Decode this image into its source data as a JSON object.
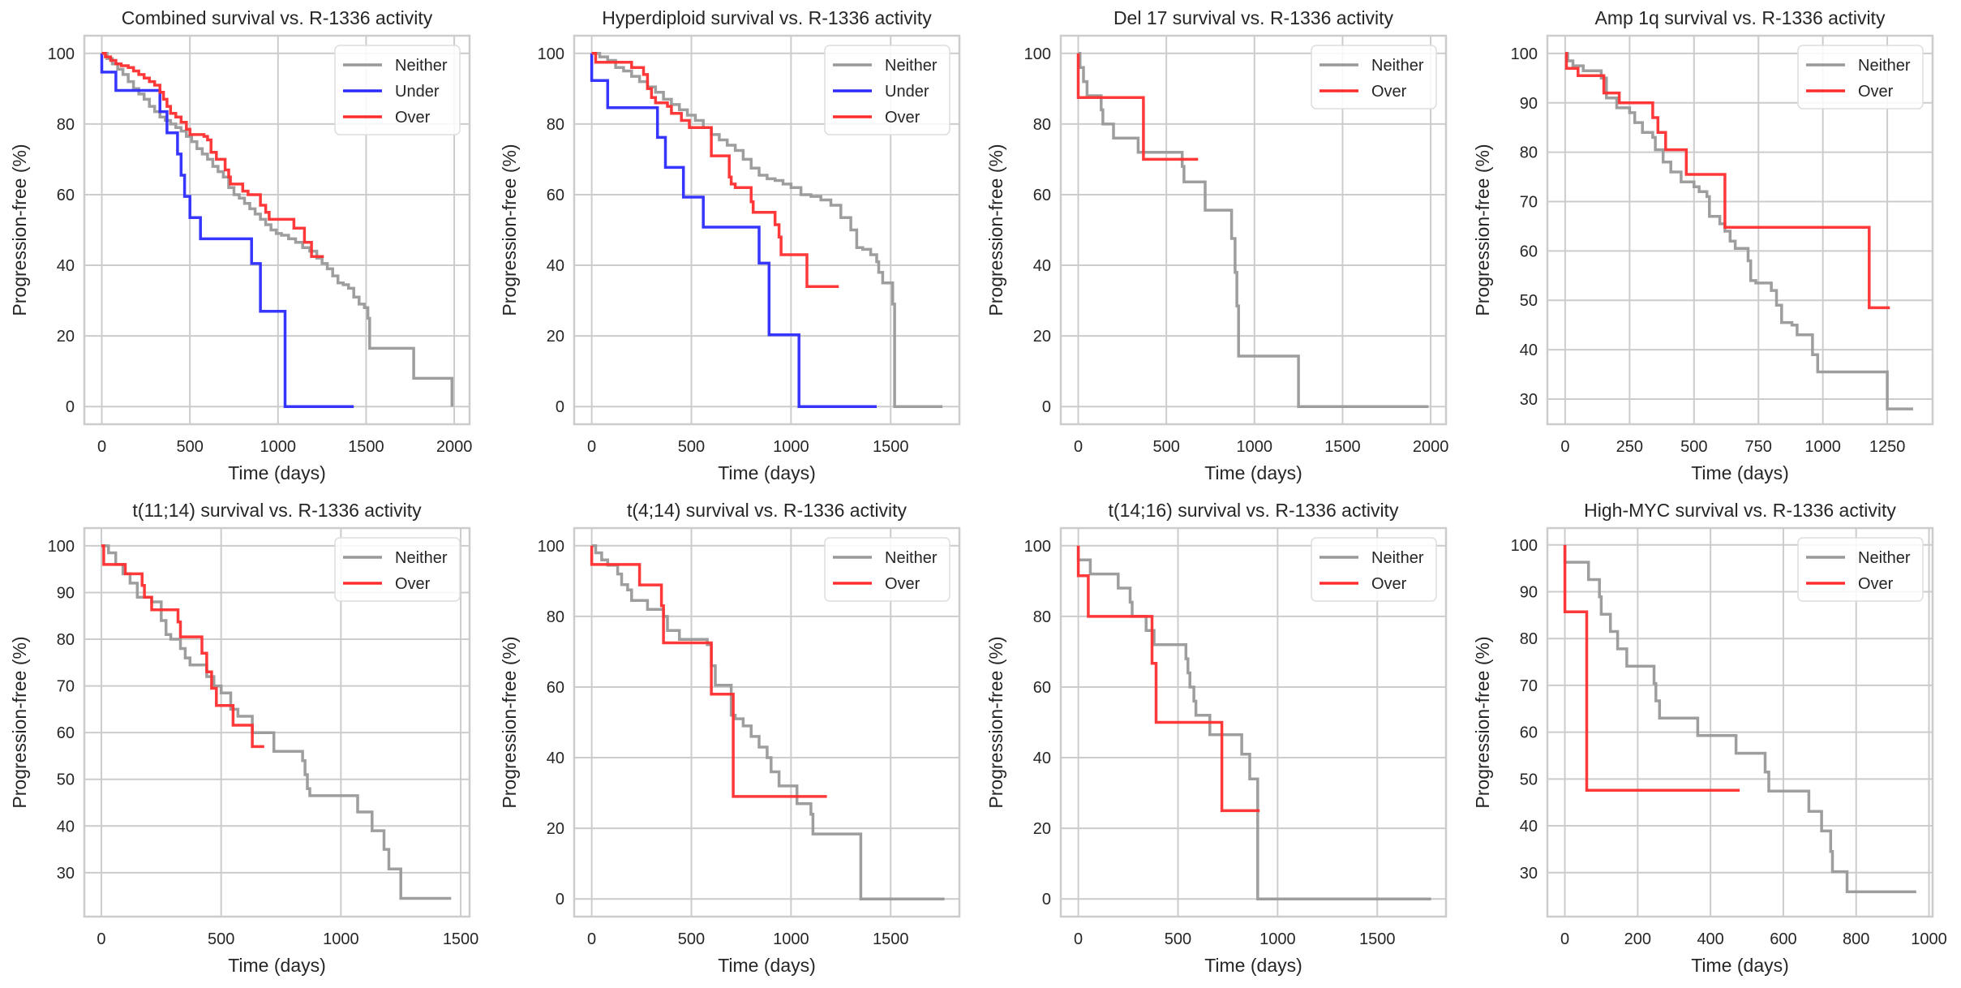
{
  "figure": {
    "colors": {
      "Neither": "#999999",
      "Under": "#2b2bff",
      "Over": "#ff2e2e",
      "grid": "#cccccc",
      "frame": "#cccccc"
    }
  },
  "chart_data": [
    {
      "type": "line",
      "step": true,
      "title": "Combined survival vs. R-1336 activity",
      "xlabel": "Time (days)",
      "ylabel": "Progression-free (%)",
      "xlim": [
        -99,
        2087
      ],
      "ylim": [
        -5,
        105
      ],
      "xticks": [
        0,
        500,
        1000,
        1500,
        2000
      ],
      "yticks": [
        0,
        20,
        40,
        60,
        80,
        100
      ],
      "grid": true,
      "legend": "top-right",
      "series": [
        {
          "name": "Neither",
          "x": [
            0,
            30,
            60,
            90,
            120,
            150,
            180,
            210,
            240,
            270,
            300,
            330,
            360,
            390,
            420,
            450,
            480,
            510,
            540,
            570,
            600,
            630,
            660,
            690,
            720,
            750,
            780,
            810,
            840,
            870,
            900,
            930,
            960,
            990,
            1020,
            1060,
            1100,
            1140,
            1180,
            1220,
            1250,
            1280,
            1310,
            1340,
            1370,
            1400,
            1430,
            1460,
            1490,
            1510,
            1520,
            1760,
            1770,
            1987
          ],
          "y": [
            100,
            98.5,
            97,
            95.5,
            94,
            92,
            90,
            88.5,
            87,
            85,
            83.5,
            82,
            81,
            80,
            79,
            78,
            76.5,
            75,
            73,
            71.5,
            70,
            68,
            66.5,
            65,
            62,
            60,
            59,
            57.5,
            56,
            54.5,
            53,
            51.5,
            50,
            49,
            48.5,
            47.5,
            46.5,
            45,
            44,
            42,
            40.5,
            39,
            37,
            35,
            34.5,
            33.5,
            31,
            29,
            28,
            25,
            16.5,
            16.5,
            8,
            0
          ]
        },
        {
          "name": "Under",
          "x": [
            0,
            0,
            80,
            330,
            370,
            430,
            450,
            470,
            500,
            560,
            850,
            900,
            1040,
            1430
          ],
          "y": [
            100,
            94.7,
            89.5,
            83.5,
            77.5,
            71.5,
            65.5,
            59.5,
            53.5,
            47.5,
            40.5,
            27,
            0,
            0
          ]
        },
        {
          "name": "Over",
          "x": [
            0,
            20,
            50,
            80,
            110,
            150,
            180,
            210,
            240,
            270,
            300,
            330,
            350,
            370,
            390,
            420,
            450,
            480,
            500,
            580,
            600,
            620,
            650,
            700,
            720,
            730,
            800,
            830,
            900,
            930,
            950,
            1090,
            1150,
            1190,
            1260
          ],
          "y": [
            100,
            99,
            98,
            97,
            96.5,
            96,
            95,
            94,
            93,
            92,
            91,
            89,
            87,
            85,
            83,
            82,
            80.5,
            78.5,
            77,
            76.5,
            75.5,
            72,
            70,
            67,
            65,
            63,
            61,
            60,
            57,
            55,
            53,
            50.5,
            46.5,
            42.5,
            42.5
          ]
        }
      ]
    },
    {
      "type": "line",
      "step": true,
      "title": "Hyperdiploid survival vs. R-1336 activity",
      "xlabel": "Time (days)",
      "ylabel": "Progression-free (%)",
      "xlim": [
        -88,
        1845
      ],
      "ylim": [
        -5,
        105
      ],
      "xticks": [
        0,
        500,
        1000,
        1500
      ],
      "yticks": [
        0,
        20,
        40,
        60,
        80,
        100
      ],
      "grid": true,
      "legend": "top-right",
      "series": [
        {
          "name": "Neither",
          "x": [
            0,
            40,
            80,
            120,
            160,
            200,
            240,
            280,
            320,
            360,
            400,
            440,
            480,
            520,
            560,
            600,
            640,
            680,
            720,
            760,
            800,
            840,
            880,
            920,
            960,
            1000,
            1050,
            1100,
            1150,
            1200,
            1250,
            1300,
            1330,
            1360,
            1400,
            1430,
            1440,
            1460,
            1510,
            1520,
            1760
          ],
          "y": [
            100,
            99,
            98,
            96,
            95,
            93.5,
            92,
            90.5,
            89,
            87,
            85.5,
            84,
            82.5,
            81,
            79,
            77,
            75.5,
            74,
            72.5,
            70,
            67.5,
            65.5,
            64.5,
            64,
            63,
            62,
            60,
            59.5,
            58.5,
            57,
            53.5,
            50,
            45,
            44.5,
            43,
            41,
            38,
            35,
            29,
            0,
            0
          ]
        },
        {
          "name": "Under",
          "x": [
            0,
            0,
            80,
            330,
            370,
            460,
            560,
            840,
            890,
            1040,
            1430
          ],
          "y": [
            100,
            92.3,
            84.6,
            76.2,
            67.7,
            59.3,
            50.8,
            40.6,
            20.3,
            0,
            0
          ]
        },
        {
          "name": "Over",
          "x": [
            0,
            20,
            200,
            260,
            280,
            300,
            320,
            380,
            400,
            450,
            490,
            600,
            690,
            700,
            720,
            800,
            810,
            880,
            920,
            940,
            950,
            1080,
            1240
          ],
          "y": [
            100,
            97.5,
            96,
            94,
            90,
            87.5,
            86,
            85,
            83,
            81,
            79,
            71,
            65,
            63,
            62,
            58,
            55,
            55,
            51.5,
            48,
            43,
            34,
            34
          ]
        }
      ]
    },
    {
      "type": "line",
      "step": true,
      "title": "Del 17 survival vs. R-1336 activity",
      "xlabel": "Time (days)",
      "ylabel": "Progression-free (%)",
      "xlim": [
        -99,
        2087
      ],
      "ylim": [
        -5,
        105
      ],
      "xticks": [
        0,
        500,
        1000,
        1500,
        2000
      ],
      "yticks": [
        0,
        20,
        40,
        60,
        80,
        100
      ],
      "grid": true,
      "legend": "top-right",
      "series": [
        {
          "name": "Neither",
          "x": [
            0,
            10,
            30,
            50,
            130,
            140,
            200,
            340,
            590,
            600,
            720,
            870,
            890,
            900,
            910,
            1250,
            1987
          ],
          "y": [
            100,
            96,
            92,
            88,
            84,
            80,
            76,
            72,
            68,
            63.6,
            55.6,
            47.6,
            38,
            28.5,
            14.3,
            0,
            0
          ]
        },
        {
          "name": "Over",
          "x": [
            0,
            0,
            370,
            680
          ],
          "y": [
            100,
            87.5,
            70,
            70
          ]
        }
      ]
    },
    {
      "type": "line",
      "step": true,
      "title": "Amp 1q survival vs. R-1336 activity",
      "xlabel": "Time (days)",
      "ylabel": "Progression-free (%)",
      "xlim": [
        -69,
        1426
      ],
      "ylim": [
        24.9,
        103.6
      ],
      "xticks": [
        0,
        250,
        500,
        750,
        1000,
        1250
      ],
      "yticks": [
        30,
        40,
        50,
        60,
        70,
        80,
        90,
        100
      ],
      "grid": true,
      "legend": "top-right",
      "series": [
        {
          "name": "Neither",
          "x": [
            0,
            10,
            30,
            70,
            140,
            160,
            200,
            250,
            270,
            300,
            340,
            350,
            380,
            410,
            450,
            500,
            520,
            550,
            560,
            600,
            620,
            640,
            660,
            700,
            710,
            720,
            740,
            800,
            820,
            840,
            880,
            900,
            960,
            980,
            1240,
            1250,
            1350
          ],
          "y": [
            100,
            98.5,
            97.5,
            96.5,
            95,
            91,
            89,
            88,
            86,
            84,
            83,
            80.5,
            78,
            76,
            74,
            73,
            72,
            71,
            67,
            65.5,
            64,
            62,
            60.5,
            60.5,
            58,
            54,
            53.5,
            52,
            49,
            45.5,
            45,
            43,
            39,
            35.5,
            35.5,
            28,
            28
          ]
        },
        {
          "name": "Over",
          "x": [
            0,
            5,
            50,
            150,
            210,
            340,
            360,
            390,
            470,
            620,
            1180,
            1260
          ],
          "y": [
            100,
            97,
            95.5,
            92,
            90,
            87,
            84,
            80.5,
            75.5,
            64.8,
            48.5,
            48.5
          ]
        }
      ]
    },
    {
      "type": "line",
      "step": true,
      "title": "t(11;14) survival vs. R-1336 activity",
      "xlabel": "Time (days)",
      "ylabel": "Progression-free (%)",
      "xlim": [
        -71,
        1537
      ],
      "ylim": [
        20.6,
        103.8
      ],
      "xticks": [
        0,
        500,
        1000,
        1500
      ],
      "yticks": [
        30,
        40,
        50,
        60,
        70,
        80,
        90,
        100
      ],
      "grid": true,
      "legend": "top-right",
      "series": [
        {
          "name": "Neither",
          "x": [
            0,
            30,
            60,
            90,
            120,
            150,
            210,
            250,
            270,
            290,
            330,
            350,
            370,
            440,
            470,
            500,
            540,
            570,
            630,
            720,
            730,
            840,
            850,
            860,
            870,
            1070,
            1130,
            1180,
            1200,
            1250,
            1460
          ],
          "y": [
            100,
            98.5,
            96,
            94,
            92,
            89,
            88,
            84,
            81,
            80,
            78,
            76,
            74.5,
            72,
            70,
            68.5,
            65,
            63.5,
            60,
            56,
            56,
            54,
            51,
            48,
            46.5,
            43,
            39,
            35,
            30.8,
            24.5,
            24.5
          ]
        },
        {
          "name": "Over",
          "x": [
            0,
            10,
            100,
            170,
            180,
            210,
            320,
            330,
            420,
            440,
            460,
            480,
            550,
            630,
            680
          ],
          "y": [
            100,
            96,
            94,
            91.5,
            89,
            86.3,
            83.7,
            80.5,
            77,
            73,
            69.5,
            65.8,
            61.6,
            57,
            57
          ]
        }
      ]
    },
    {
      "type": "line",
      "step": true,
      "title": "t(4;14) survival vs. R-1336 activity",
      "xlabel": "Time (days)",
      "ylabel": "Progression-free (%)",
      "xlim": [
        -88,
        1845
      ],
      "ylim": [
        -5,
        105
      ],
      "xticks": [
        0,
        500,
        1000,
        1500
      ],
      "yticks": [
        0,
        20,
        40,
        60,
        80,
        100
      ],
      "grid": true,
      "legend": "top-right",
      "series": [
        {
          "name": "Neither",
          "x": [
            0,
            20,
            50,
            80,
            130,
            150,
            180,
            200,
            230,
            280,
            360,
            380,
            440,
            580,
            600,
            620,
            700,
            720,
            760,
            800,
            840,
            880,
            900,
            940,
            1030,
            1100,
            1110,
            1350,
            1770
          ],
          "y": [
            100,
            98,
            96,
            94.5,
            92,
            89,
            87.5,
            84.5,
            84.5,
            82,
            80,
            76,
            73.5,
            72,
            66,
            60.5,
            52,
            51,
            49,
            46,
            43,
            40,
            36,
            32,
            27,
            24,
            18.4,
            0,
            0
          ]
        },
        {
          "name": "Over",
          "x": [
            0,
            0,
            240,
            350,
            360,
            600,
            710,
            1180
          ],
          "y": [
            100,
            94.7,
            88.9,
            83,
            72.5,
            58,
            29,
            29
          ]
        }
      ]
    },
    {
      "type": "line",
      "step": true,
      "title": "t(14;16) survival vs. R-1336 activity",
      "xlabel": "Time (days)",
      "ylabel": "Progression-free (%)",
      "xlim": [
        -88,
        1845
      ],
      "ylim": [
        -5,
        105
      ],
      "xticks": [
        0,
        500,
        1000,
        1500
      ],
      "yticks": [
        0,
        20,
        40,
        60,
        80,
        100
      ],
      "grid": true,
      "legend": "top-right",
      "series": [
        {
          "name": "Neither",
          "x": [
            0,
            0,
            60,
            200,
            260,
            270,
            340,
            380,
            540,
            550,
            560,
            580,
            590,
            660,
            820,
            860,
            900,
            1770
          ],
          "y": [
            100,
            96,
            92,
            88,
            84,
            80,
            76,
            72,
            68,
            64,
            60,
            56,
            52,
            46.5,
            41,
            34,
            0,
            0
          ]
        },
        {
          "name": "Over",
          "x": [
            0,
            0,
            50,
            370,
            390,
            720,
            910
          ],
          "y": [
            100,
            91.5,
            80,
            66.7,
            50,
            25,
            25
          ]
        }
      ]
    },
    {
      "type": "line",
      "step": true,
      "title": "High-MYC survival vs. R-1336 activity",
      "xlabel": "Time (days)",
      "ylabel": "Progression-free (%)",
      "xlim": [
        -48,
        1010
      ],
      "ylim": [
        20.6,
        103.6
      ],
      "xticks": [
        0,
        200,
        400,
        600,
        800,
        1000
      ],
      "yticks": [
        30,
        40,
        50,
        60,
        70,
        80,
        90,
        100
      ],
      "grid": true,
      "legend": "top-right",
      "series": [
        {
          "name": "Neither",
          "x": [
            0,
            0,
            65,
            95,
            100,
            125,
            145,
            170,
            245,
            250,
            260,
            365,
            470,
            550,
            560,
            670,
            705,
            730,
            735,
            775,
            965
          ],
          "y": [
            100,
            96.3,
            92.6,
            88.9,
            85.2,
            81.5,
            77.8,
            74.1,
            70.4,
            66.7,
            63,
            59.3,
            55.5,
            51.5,
            47.4,
            43.1,
            38.9,
            34.5,
            30.2,
            25.9,
            25.9
          ]
        },
        {
          "name": "Over",
          "x": [
            0,
            0,
            60,
            480
          ],
          "y": [
            100,
            85.7,
            47.6,
            47.6
          ]
        }
      ]
    }
  ]
}
